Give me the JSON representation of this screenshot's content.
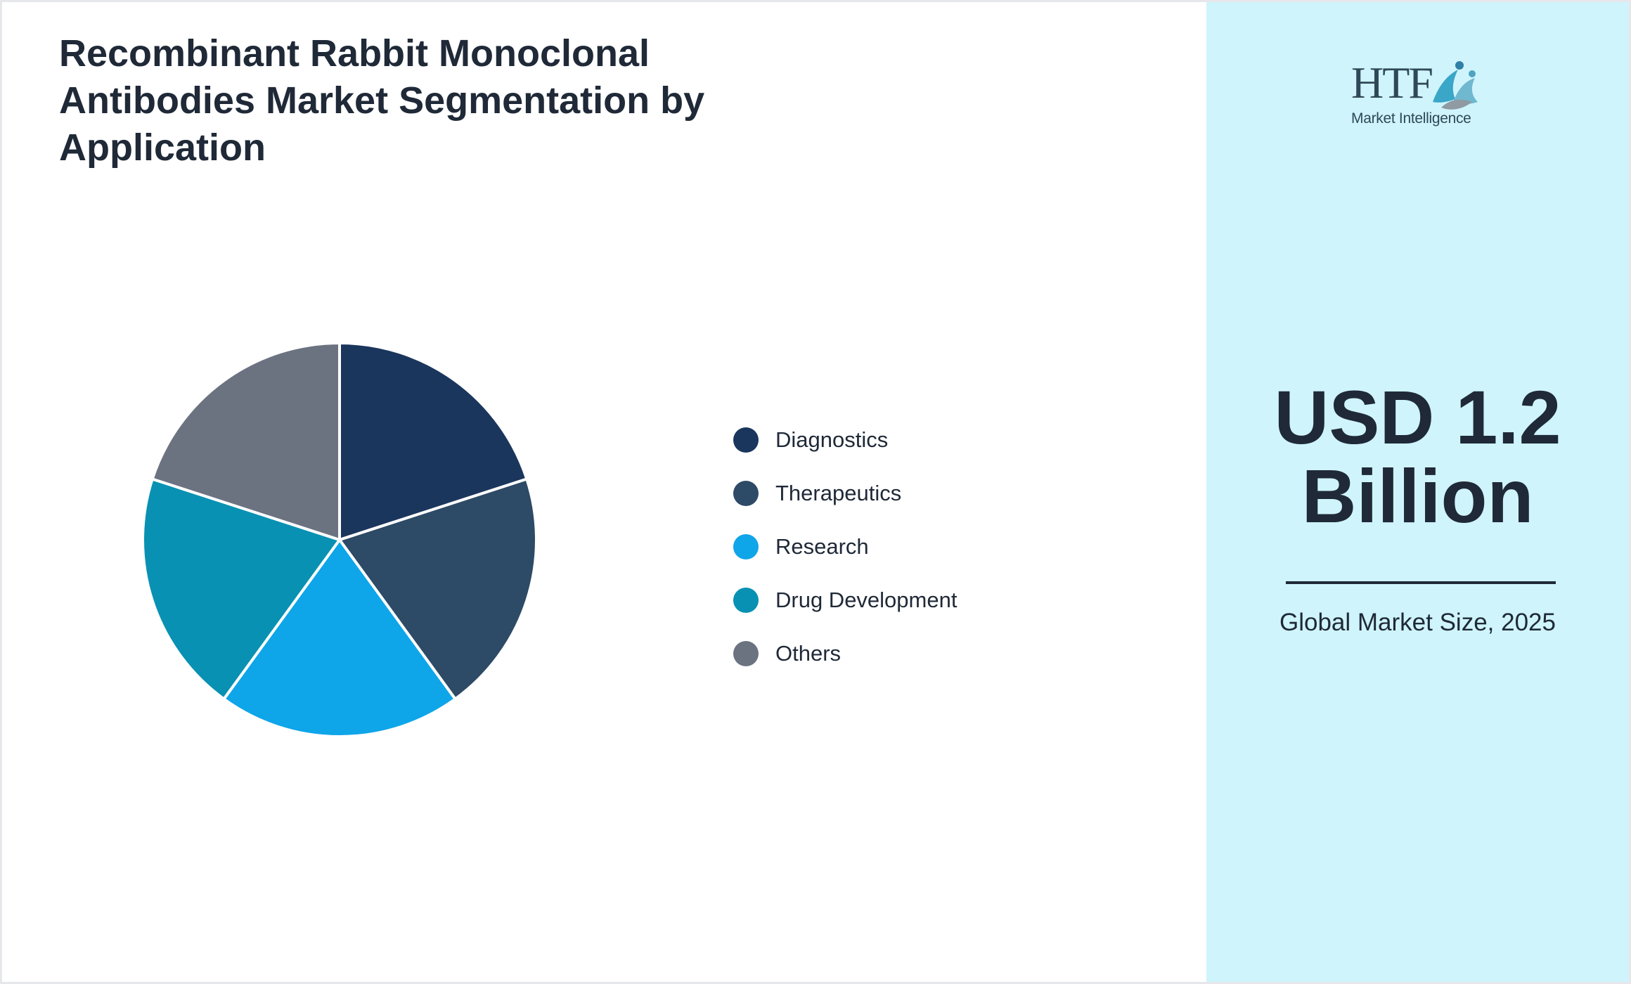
{
  "title": "Recombinant Rabbit Monoclonal Antibodies Market Segmentation by Application",
  "logo": {
    "brand": "HTF",
    "tagline": "Market Intelligence"
  },
  "market_size": {
    "value": "USD 1.2 Billion",
    "caption": "Global Market Size, 2025"
  },
  "chart_data": {
    "type": "pie",
    "title": "Recombinant Rabbit Monoclonal Antibodies Market Segmentation by Application",
    "categories": [
      "Diagnostics",
      "Therapeutics",
      "Research",
      "Drug Development",
      "Others"
    ],
    "values": [
      20,
      20,
      20,
      20,
      20
    ],
    "colors": [
      "#1b365d",
      "#2d4a66",
      "#0ea5e9",
      "#0891b2",
      "#6b7280"
    ],
    "legend_position": "right"
  }
}
